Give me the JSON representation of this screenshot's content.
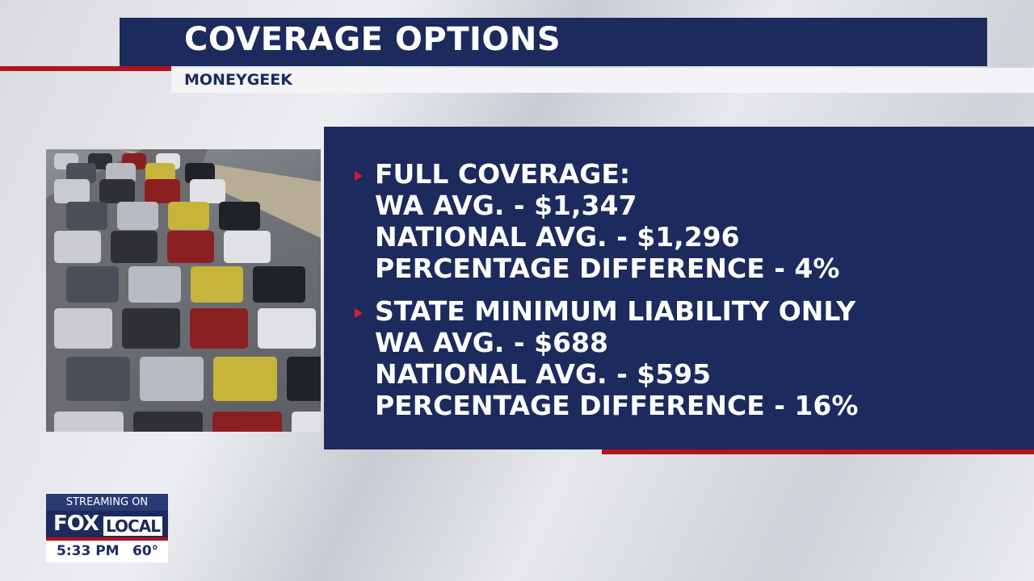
{
  "header": {
    "title": "COVERAGE OPTIONS",
    "source": "MONEYGEEK"
  },
  "sections": [
    {
      "heading": "FULL COVERAGE:",
      "lines": [
        "WA AVG. - $1,347",
        "NATIONAL AVG. - $1,296",
        "PERCENTAGE DIFFERENCE - 4%"
      ]
    },
    {
      "heading": "STATE MINIMUM LIABILITY ONLY",
      "lines": [
        "WA AVG. - $688",
        "NATIONAL AVG. - $595",
        "PERCENTAGE DIFFERENCE - 16%"
      ]
    }
  ],
  "bug": {
    "streaming": "STREAMING ON",
    "brand": "FOX",
    "channel": "LOCAL",
    "time": "5:33 PM",
    "temperature": "60°"
  }
}
